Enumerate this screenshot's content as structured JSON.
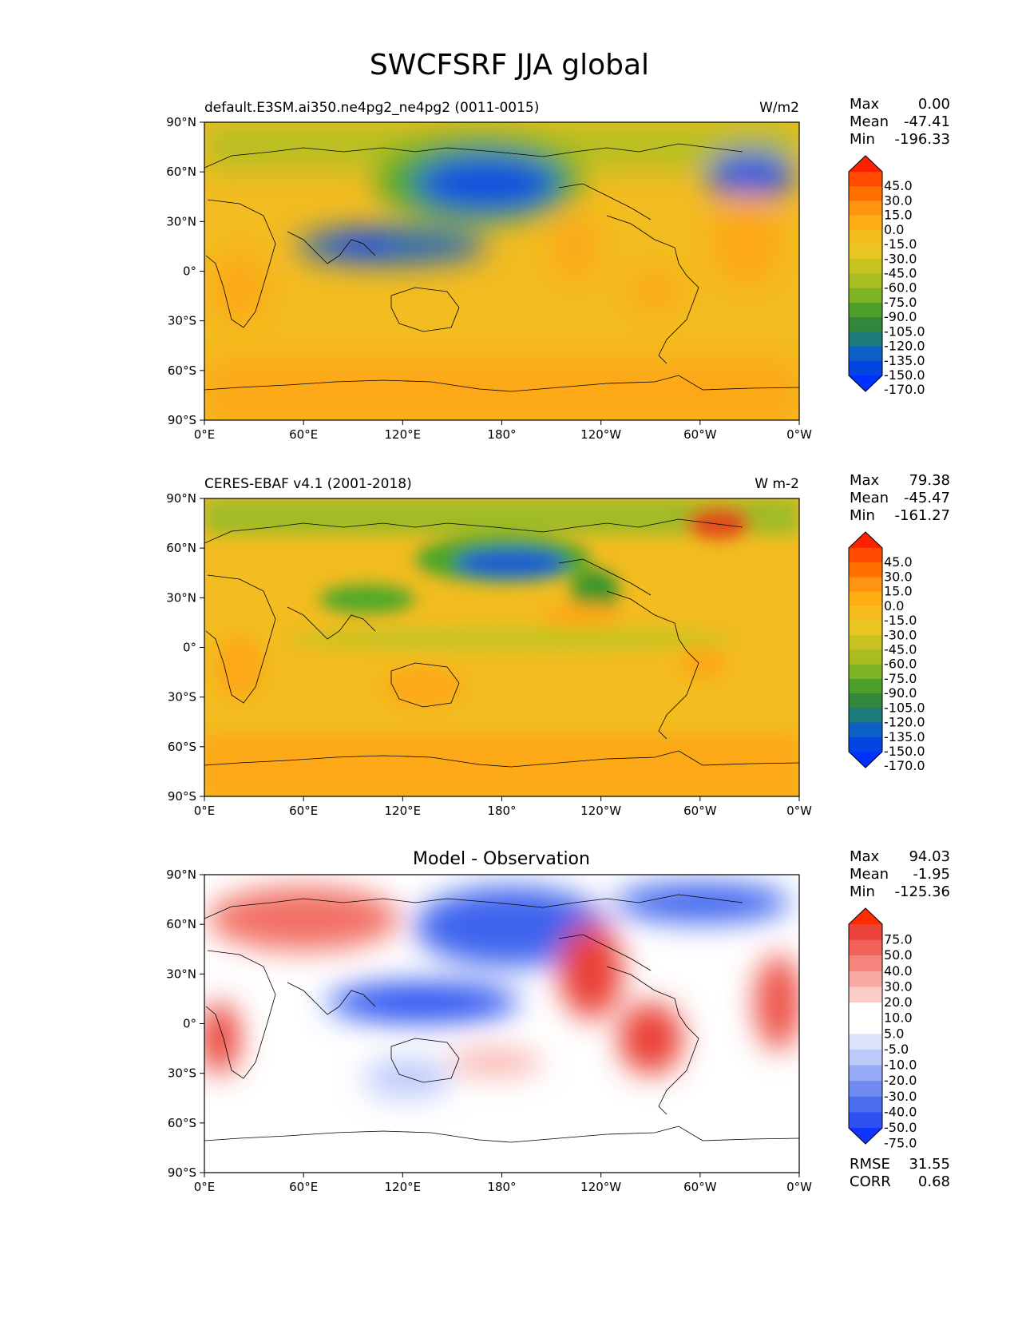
{
  "title": "SWCFSRF JJA global",
  "axes": {
    "lon_ticks": [
      "0°E",
      "60°E",
      "120°E",
      "180°",
      "120°W",
      "60°W",
      "0°W"
    ],
    "lat_ticks": [
      "90°N",
      "60°N",
      "30°N",
      "0°",
      "30°S",
      "60°S",
      "90°S"
    ]
  },
  "panels": [
    {
      "id": "model",
      "left_title": "default.E3SM.ai350.ne4pg2_ne4pg2 (0011-0015)",
      "center_title": "",
      "units": "W/m2",
      "stats": [
        {
          "label": "Max",
          "value": "0.00"
        },
        {
          "label": "Mean",
          "value": "-47.41"
        },
        {
          "label": "Min",
          "value": "-196.33"
        }
      ],
      "colorbar": {
        "labels": [
          "45.0",
          "30.0",
          "15.0",
          "0.0",
          "-15.0",
          "-30.0",
          "-45.0",
          "-60.0",
          "-75.0",
          "-90.0",
          "-105.0",
          "-120.0",
          "-135.0",
          "-150.0",
          "-170.0"
        ],
        "colors": [
          "#ff2000",
          "#ff4a00",
          "#ff7000",
          "#ff9410",
          "#ffae14",
          "#f5bd1e",
          "#e8c521",
          "#c8c221",
          "#a9bc22",
          "#7fb525",
          "#4e9f2a",
          "#31873b",
          "#1d7a7a",
          "#0d60c8",
          "#0345e0",
          "#0030ff"
        ]
      },
      "footer_stats": []
    },
    {
      "id": "obs",
      "left_title": "CERES-EBAF v4.1 (2001-2018)",
      "center_title": "",
      "units": "W m-2",
      "stats": [
        {
          "label": "Max",
          "value": "79.38"
        },
        {
          "label": "Mean",
          "value": "-45.47"
        },
        {
          "label": "Min",
          "value": "-161.27"
        }
      ],
      "colorbar": {
        "labels": [
          "45.0",
          "30.0",
          "15.0",
          "0.0",
          "-15.0",
          "-30.0",
          "-45.0",
          "-60.0",
          "-75.0",
          "-90.0",
          "-105.0",
          "-120.0",
          "-135.0",
          "-150.0",
          "-170.0"
        ],
        "colors": [
          "#ff2000",
          "#ff4a00",
          "#ff7000",
          "#ff9410",
          "#ffae14",
          "#f5bd1e",
          "#e8c521",
          "#c8c221",
          "#a9bc22",
          "#7fb525",
          "#4e9f2a",
          "#31873b",
          "#1d7a7a",
          "#0d60c8",
          "#0345e0",
          "#0030ff"
        ]
      },
      "footer_stats": []
    },
    {
      "id": "diff",
      "left_title": "",
      "center_title": "Model - Observation",
      "units": "",
      "stats": [
        {
          "label": "Max",
          "value": "94.03"
        },
        {
          "label": "Mean",
          "value": "-1.95"
        },
        {
          "label": "Min",
          "value": "-125.36"
        }
      ],
      "colorbar": {
        "labels": [
          "75.0",
          "50.0",
          "40.0",
          "30.0",
          "20.0",
          "10.0",
          "5.0",
          "-5.0",
          "-10.0",
          "-20.0",
          "-30.0",
          "-40.0",
          "-50.0",
          "-75.0"
        ],
        "colors": [
          "#ff2b00",
          "#e8423a",
          "#f0625a",
          "#f4847c",
          "#f8a9a2",
          "#fbcdc8",
          "#ffffff",
          "#ffffff",
          "#dde3fb",
          "#bccafa",
          "#96aaf7",
          "#6f8bf2",
          "#4a6cee",
          "#2d50f0",
          "#1034ff"
        ]
      },
      "footer_stats": [
        {
          "label": "RMSE",
          "value": "31.55"
        },
        {
          "label": "CORR",
          "value": "0.68"
        }
      ]
    }
  ]
}
